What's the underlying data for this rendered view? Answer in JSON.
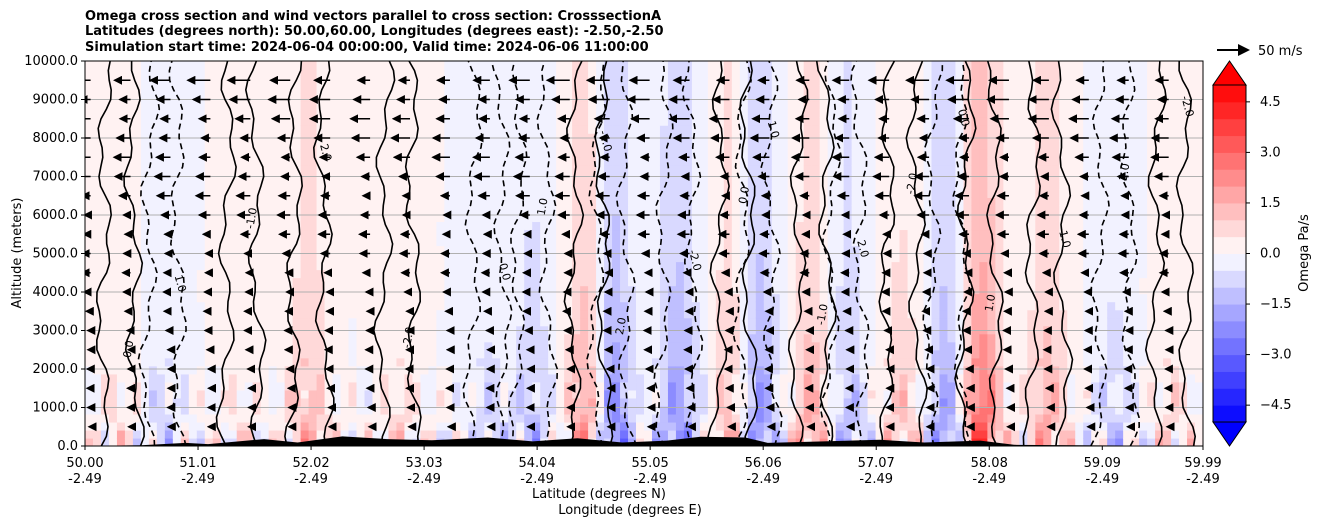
{
  "chart_data": {
    "type": "contour",
    "title_lines": [
      "Omega cross section and wind vectors parallel to cross section: CrosssectionA",
      "Latitudes (degrees north): 50.00,60.00, Longitudes (degrees east): -2.50,-2.50",
      "Simulation start time: 2024-06-04 00:00:00, Valid time: 2024-06-06 11:00:00"
    ],
    "ylabel": "Altitude (meters)",
    "xlabel_lat": "Latitude (degrees N)",
    "xlabel_lon": "Longitude (degrees E)",
    "ylim": [
      0,
      10000
    ],
    "y_ticks": [
      0,
      1000,
      2000,
      3000,
      4000,
      5000,
      6000,
      7000,
      8000,
      9000,
      10000
    ],
    "y_tick_labels": [
      "0.0",
      "1000.0",
      "2000.0",
      "3000.0",
      "4000.0",
      "5000.0",
      "6000.0",
      "7000.0",
      "8000.0",
      "9000.0",
      "10000.0"
    ],
    "x_range": [
      50.0,
      59.99
    ],
    "x_ticks_lat": [
      50.0,
      51.01,
      52.02,
      53.03,
      54.04,
      55.05,
      56.06,
      57.07,
      58.08,
      59.09,
      59.99
    ],
    "x_tick_lat_labels": [
      "50.00",
      "51.01",
      "52.02",
      "53.03",
      "54.04",
      "55.05",
      "56.06",
      "57.07",
      "58.08",
      "59.09",
      "59.99"
    ],
    "x_tick_lon_labels": [
      "-2.49",
      "-2.49",
      "-2.49",
      "-2.49",
      "-2.49",
      "-2.49",
      "-2.49",
      "-2.49",
      "-2.49",
      "-2.49",
      "-2.49"
    ],
    "colorbar": {
      "label": "Omega Pa/s",
      "range": [
        -5.0,
        5.0
      ],
      "levels": [
        -5.0,
        -4.5,
        -4.0,
        -3.5,
        -3.0,
        -2.5,
        -2.0,
        -1.5,
        -1.0,
        -0.5,
        0.0,
        0.5,
        1.0,
        1.5,
        2.0,
        2.5,
        3.0,
        3.5,
        4.0,
        4.5,
        5.0
      ],
      "tick_values": [
        -4.5,
        -3.0,
        -1.5,
        0.0,
        1.5,
        3.0,
        4.5
      ],
      "tick_labels": [
        "−4.5",
        "−3.0",
        "−1.5",
        "0.0",
        "1.5",
        "3.0",
        "4.5"
      ],
      "extend": "both",
      "cmap": "bwr"
    },
    "vector_key": {
      "label": "50 m/s",
      "value": 50
    },
    "contour_labels": [
      "0.0",
      "1.0",
      "-1.0",
      "2.0",
      "-2.0"
    ],
    "wind_profile": {
      "heights": [
        500,
        1000,
        1500,
        2000,
        2500,
        3000,
        3500,
        4000,
        4500,
        5000,
        5500,
        6000,
        6500,
        7000,
        7500,
        8000,
        8500,
        9000,
        9500
      ],
      "u_ms": [
        -3,
        -4,
        -5,
        -6,
        -7,
        -8,
        -9,
        -10,
        -12,
        -14,
        -16,
        -18,
        -20,
        -22,
        -24,
        -26,
        -28,
        -30,
        -32
      ]
    },
    "omega_features": [
      {
        "lat": 50.3,
        "value": 0.5
      },
      {
        "lat": 50.7,
        "value": -0.6
      },
      {
        "lat": 51.4,
        "value": 0.4
      },
      {
        "lat": 52.0,
        "value": 1.2
      },
      {
        "lat": 52.8,
        "value": 0.6
      },
      {
        "lat": 53.6,
        "value": -0.7
      },
      {
        "lat": 54.0,
        "value": -1.0
      },
      {
        "lat": 54.5,
        "value": 2.2
      },
      {
        "lat": 54.7,
        "value": -2.5
      },
      {
        "lat": 55.3,
        "value": -1.8
      },
      {
        "lat": 55.8,
        "value": 1.6
      },
      {
        "lat": 56.0,
        "value": -2.2
      },
      {
        "lat": 56.5,
        "value": 1.5
      },
      {
        "lat": 56.8,
        "value": -1.2
      },
      {
        "lat": 57.3,
        "value": 1.0
      },
      {
        "lat": 57.7,
        "value": -1.8
      },
      {
        "lat": 58.0,
        "value": 2.8
      },
      {
        "lat": 58.6,
        "value": 1.4
      },
      {
        "lat": 59.2,
        "value": -0.8
      },
      {
        "lat": 59.7,
        "value": 0.6
      }
    ],
    "terrain": [
      {
        "lat": 50.0,
        "h": 0
      },
      {
        "lat": 50.5,
        "h": 20
      },
      {
        "lat": 50.9,
        "h": 80
      },
      {
        "lat": 51.1,
        "h": 50
      },
      {
        "lat": 51.6,
        "h": 180
      },
      {
        "lat": 51.9,
        "h": 90
      },
      {
        "lat": 52.3,
        "h": 250
      },
      {
        "lat": 52.7,
        "h": 180
      },
      {
        "lat": 53.1,
        "h": 150
      },
      {
        "lat": 53.6,
        "h": 220
      },
      {
        "lat": 54.0,
        "h": 120
      },
      {
        "lat": 54.4,
        "h": 200
      },
      {
        "lat": 54.8,
        "h": 90
      },
      {
        "lat": 55.2,
        "h": 140
      },
      {
        "lat": 55.5,
        "h": 240
      },
      {
        "lat": 55.9,
        "h": 220
      },
      {
        "lat": 56.1,
        "h": 80
      },
      {
        "lat": 56.6,
        "h": 120
      },
      {
        "lat": 57.1,
        "h": 160
      },
      {
        "lat": 57.5,
        "h": 90
      },
      {
        "lat": 58.0,
        "h": 140
      },
      {
        "lat": 58.3,
        "h": 30
      },
      {
        "lat": 59.99,
        "h": 0
      }
    ]
  }
}
